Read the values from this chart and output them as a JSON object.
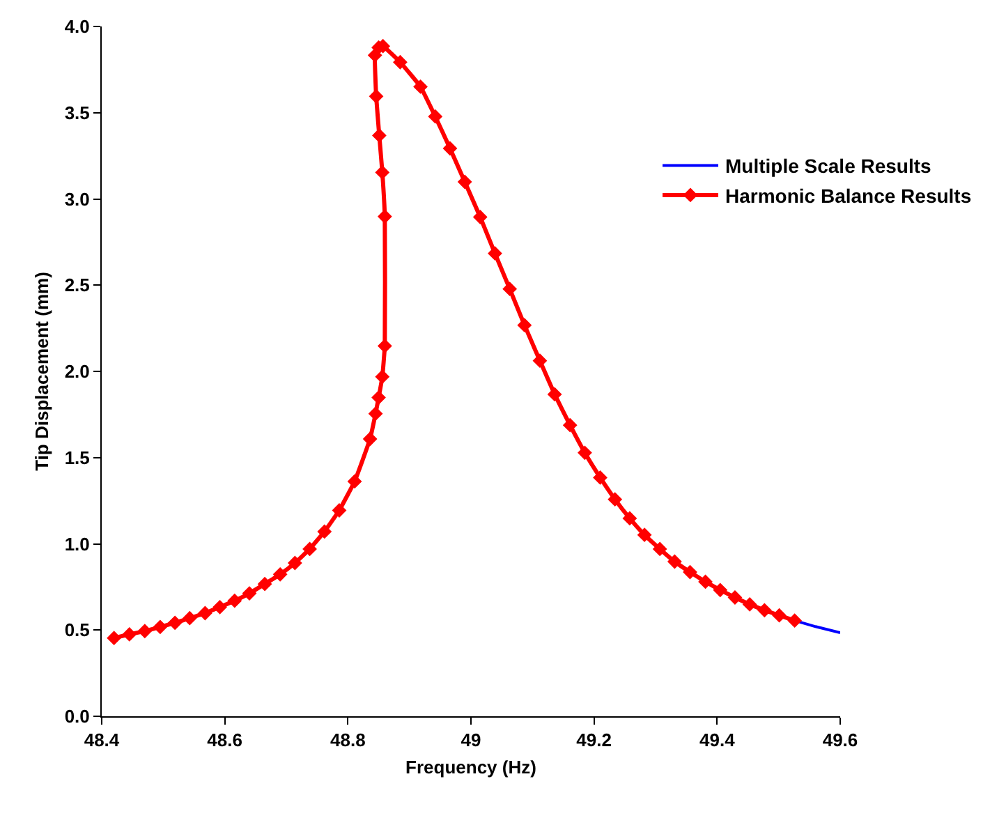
{
  "chart_data": {
    "type": "line",
    "xlabel": "Frequency (Hz)",
    "ylabel": "Tip Displacement (mm)",
    "xlim": [
      48.4,
      49.6
    ],
    "xticks": [
      48.4,
      48.6,
      48.8,
      49,
      49.2,
      49.4,
      49.6
    ],
    "ylim": [
      0,
      4
    ],
    "yticks": [
      {
        "value": 0,
        "label": "0.0"
      },
      0.5,
      {
        "value": 1,
        "label": "1.0"
      },
      1.5,
      {
        "value": 2,
        "label": "2.0"
      },
      2.5,
      {
        "value": 3,
        "label": "3.0"
      },
      3.5,
      {
        "value": 4,
        "label": "4.0"
      }
    ],
    "legend": "top right",
    "line_style": "solid",
    "series": [
      {
        "name": "Multiple Scale Results",
        "color": "#0000ff",
        "marker": "none",
        "x": [
          49.526,
          49.56,
          49.6
        ],
        "values": [
          0.555,
          0.52,
          0.485
        ]
      },
      {
        "name": "Harmonic Balance Results",
        "color": "#ff0000",
        "marker": "diamond",
        "x": [
          48.42,
          48.445,
          48.47,
          48.495,
          48.519,
          48.543,
          48.568,
          48.592,
          48.616,
          48.64,
          48.665,
          48.69,
          48.714,
          48.738,
          48.762,
          48.786,
          48.811,
          48.836,
          48.845,
          48.85,
          48.856,
          48.86,
          48.86,
          48.856,
          48.851,
          48.846,
          48.844,
          48.85,
          48.857,
          48.885,
          48.918,
          48.942,
          48.966,
          48.99,
          49.015,
          49.039,
          49.063,
          49.087,
          49.112,
          49.136,
          49.161,
          49.185,
          49.21,
          49.234,
          49.258,
          49.282,
          49.307,
          49.331,
          49.356,
          49.381,
          49.405,
          49.429,
          49.453,
          49.477,
          49.501,
          49.526
        ],
        "values": [
          0.454,
          0.475,
          0.494,
          0.518,
          0.542,
          0.569,
          0.598,
          0.633,
          0.67,
          0.713,
          0.767,
          0.823,
          0.889,
          0.97,
          1.071,
          1.194,
          1.362,
          1.608,
          1.755,
          1.848,
          1.969,
          2.147,
          2.898,
          3.154,
          3.368,
          3.595,
          3.833,
          3.878,
          3.886,
          3.793,
          3.651,
          3.478,
          3.293,
          3.099,
          2.895,
          2.684,
          2.478,
          2.268,
          2.062,
          1.867,
          1.688,
          1.528,
          1.384,
          1.258,
          1.148,
          1.052,
          0.97,
          0.897,
          0.836,
          0.78,
          0.732,
          0.689,
          0.649,
          0.615,
          0.585,
          0.555
        ]
      }
    ]
  }
}
